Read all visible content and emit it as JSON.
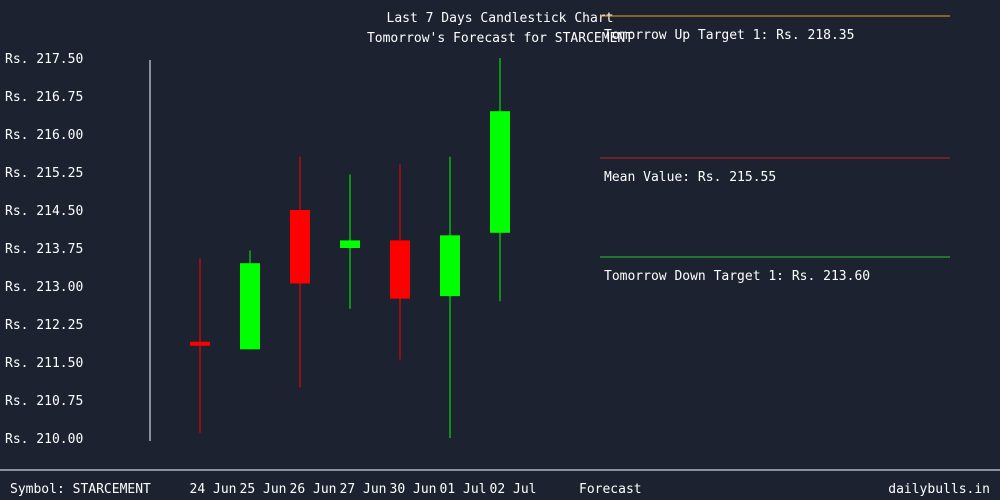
{
  "chart_data": {
    "type": "candlestick",
    "title": "Last 7 Days Candlestick Chart",
    "subtitle": "Tomorrow's Forecast for STARCEMENT",
    "ylim": [
      210.0,
      217.5
    ],
    "yticks": [
      "Rs. 217.50",
      "Rs. 216.75",
      "Rs. 216.00",
      "Rs. 215.25",
      "Rs. 214.50",
      "Rs. 213.75",
      "Rs. 213.00",
      "Rs. 212.25",
      "Rs. 211.50",
      "Rs. 210.75",
      "Rs. 210.00"
    ],
    "ytick_values": [
      217.5,
      216.75,
      216.0,
      215.25,
      214.5,
      213.75,
      213.0,
      212.25,
      211.5,
      210.75,
      210.0
    ],
    "categories": [
      "24 Jun",
      "25 Jun",
      "26 Jun",
      "27 Jun",
      "30 Jun",
      "01 Jul",
      "02 Jul"
    ],
    "candles": [
      {
        "open": 211.9,
        "close": 211.85,
        "high": 213.55,
        "low": 210.1,
        "direction": "down"
      },
      {
        "open": 211.75,
        "close": 213.45,
        "high": 213.7,
        "low": 211.75,
        "direction": "up"
      },
      {
        "open": 214.5,
        "close": 213.05,
        "high": 215.55,
        "low": 211.0,
        "direction": "down"
      },
      {
        "open": 213.75,
        "close": 213.9,
        "high": 215.2,
        "low": 212.55,
        "direction": "up"
      },
      {
        "open": 213.9,
        "close": 212.75,
        "high": 215.4,
        "low": 211.55,
        "direction": "down"
      },
      {
        "open": 212.8,
        "close": 214.0,
        "high": 215.55,
        "low": 210.0,
        "direction": "up"
      },
      {
        "open": 214.05,
        "close": 216.45,
        "high": 217.5,
        "low": 212.7,
        "direction": "up"
      }
    ],
    "forecast": {
      "up_label": "Tomorrow Up Target 1: Rs. 218.35",
      "up_value": 218.35,
      "mean_label": "Mean Value: Rs. 215.55",
      "mean_value": 215.55,
      "down_label": "Tomorrow Down Target 1: Rs. 213.60",
      "down_value": 213.6
    },
    "colors": {
      "background": "#1c2230",
      "up": "#00ff00",
      "down": "#ff0000",
      "up_target": "#f0a020",
      "mean": "#c81e1e",
      "down_target": "#28c828",
      "text": "#ffffff"
    }
  },
  "footer": {
    "symbol": "Symbol: STARCEMENT",
    "forecast_label": "Forecast",
    "site": "dailybulls.in"
  }
}
